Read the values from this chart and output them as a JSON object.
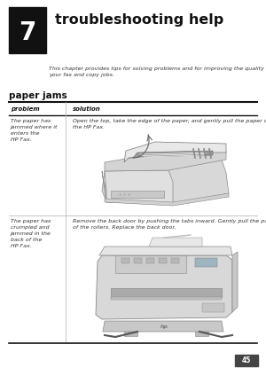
{
  "page_bg": "#ffffff",
  "chapter_box_color": "#111111",
  "chapter_number": "7",
  "chapter_title": "troubleshooting help",
  "intro_text": "This chapter provides tips for solving problems and for improving the quality of\nyour fax and copy jobs.",
  "section_title": "paper jams",
  "table_header_problem": "problem",
  "table_header_solution": "solution",
  "row1_problem": "The paper has\njammed where it\nenters the\nHP Fax.",
  "row1_solution": "Open the top, take the edge of the paper, and gently pull the paper out of\nthe HP Fax.",
  "row2_problem": "The paper has\ncrumpled and\njammed in the\nback of the\nHP Fax.",
  "row2_solution": "Remove the back door by pushing the tabs inward. Gently pull the paper out\nof the rollers. Replace the back door.",
  "page_number": "45",
  "text_color": "#333333",
  "light_gray": "#cccccc",
  "mid_gray": "#aaaaaa",
  "dark_gray": "#888888",
  "line_color": "#111111"
}
